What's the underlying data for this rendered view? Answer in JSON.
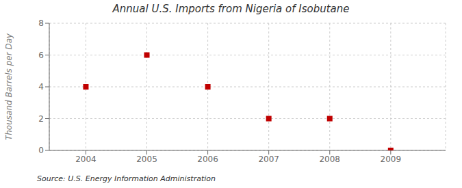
{
  "chart_data": {
    "type": "scatter",
    "title": "Annual U.S. Imports from Nigeria of Isobutane",
    "ylabel": "Thousand Barrels per Day",
    "annotation": "Source: U.S. Energy Information Administration",
    "x": [
      2004,
      2005,
      2006,
      2007,
      2008,
      2009
    ],
    "values": [
      4,
      6,
      4,
      2,
      2,
      0
    ],
    "color": "#c00000",
    "marker": "square",
    "xlim": [
      2003.4,
      2009.9
    ],
    "xticks": [
      2004,
      2005,
      2006,
      2007,
      2008,
      2009
    ],
    "ylim": [
      0,
      8
    ],
    "yticks": [
      0,
      2,
      4,
      6,
      8
    ],
    "grid": true
  }
}
